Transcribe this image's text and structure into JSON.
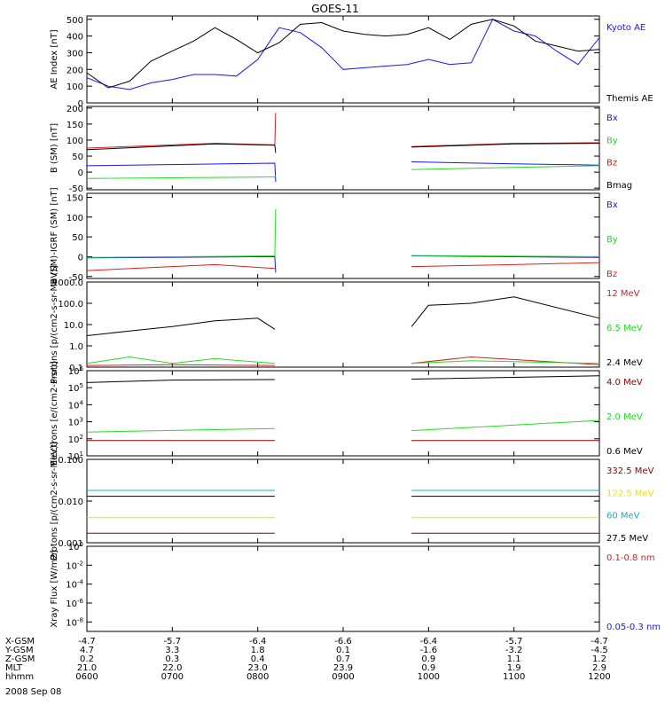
{
  "title": "GOES-11",
  "date": "2008 Sep 08",
  "colors": {
    "black": "#000000",
    "blue": "#1515ff",
    "green": "#22dd22",
    "red": "#d42020",
    "darkred": "#8b0000",
    "yellow": "#f0e000",
    "cyan": "#1aa7d8"
  },
  "ephemeris": {
    "row_labels": [
      "X-GSM",
      "Y-GSM",
      "Z-GSM",
      "MLT",
      "hhmm"
    ],
    "columns": [
      {
        "hhmm": "0600",
        "values": [
          "-4.7",
          "4.7",
          "0.2",
          "21.0",
          "0600"
        ]
      },
      {
        "hhmm": "0700",
        "values": [
          "-5.7",
          "3.3",
          "0.3",
          "22.0",
          "0700"
        ]
      },
      {
        "hhmm": "0800",
        "values": [
          "-6.4",
          "1.8",
          "0.4",
          "23.0",
          "0800"
        ]
      },
      {
        "hhmm": "0900",
        "values": [
          "-6.6",
          "0.1",
          "0.7",
          "23.9",
          "0900"
        ]
      },
      {
        "hhmm": "1000",
        "values": [
          "-6.4",
          "-1.6",
          "0.9",
          "0.9",
          "1000"
        ]
      },
      {
        "hhmm": "1100",
        "values": [
          "-5.7",
          "-3.2",
          "1.1",
          "1.9",
          "1100"
        ]
      },
      {
        "hhmm": "1200",
        "values": [
          "-4.7",
          "-4.5",
          "1.2",
          "2.9",
          "1200"
        ]
      }
    ]
  },
  "chart_data": [
    {
      "type": "line",
      "ylabel": "AE Index [nT]",
      "ylim": [
        0,
        520
      ],
      "yticks": [
        {
          "v": 0,
          "label": "0"
        },
        {
          "v": 100,
          "label": "100"
        },
        {
          "v": 200,
          "label": "200"
        },
        {
          "v": 300,
          "label": "300"
        },
        {
          "v": 400,
          "label": "400"
        },
        {
          "v": 500,
          "label": "500"
        }
      ],
      "series": [
        {
          "name": "Kyoto AE",
          "color": "blue",
          "x": [
            0,
            0.25,
            0.5,
            0.75,
            1,
            1.25,
            1.5,
            1.75,
            2,
            2.25,
            2.5,
            2.75,
            3,
            3.25,
            3.5,
            3.75,
            4,
            4.25,
            4.5,
            4.75,
            5,
            5.25,
            5.5,
            5.75,
            6
          ],
          "y": [
            150,
            100,
            80,
            120,
            140,
            170,
            170,
            160,
            260,
            450,
            420,
            330,
            200,
            210,
            220,
            230,
            260,
            230,
            240,
            500,
            430,
            400,
            310,
            230,
            390
          ]
        },
        {
          "name": "Themis AE",
          "color": "black",
          "x": [
            0,
            0.25,
            0.5,
            0.75,
            1,
            1.25,
            1.5,
            1.75,
            2,
            2.25,
            2.5,
            2.75,
            3,
            3.25,
            3.5,
            3.75,
            4,
            4.25,
            4.5,
            4.75,
            5,
            5.25,
            5.5,
            5.75,
            6
          ],
          "y": [
            180,
            90,
            130,
            250,
            310,
            370,
            450,
            380,
            300,
            360,
            470,
            480,
            430,
            410,
            400,
            410,
            450,
            380,
            470,
            500,
            460,
            370,
            340,
            310,
            320
          ]
        }
      ]
    },
    {
      "type": "line",
      "ylabel": "B (SM) [nT]",
      "ylim": [
        -55,
        205
      ],
      "yticks": [
        {
          "v": -50,
          "label": "-50"
        },
        {
          "v": 0,
          "label": "0"
        },
        {
          "v": 50,
          "label": "50"
        },
        {
          "v": 100,
          "label": "100"
        },
        {
          "v": 150,
          "label": "150"
        },
        {
          "v": 200,
          "label": "200"
        }
      ],
      "series": [
        {
          "name": "Bx",
          "color": "blue",
          "x": [
            0,
            2.2,
            2.21,
            2.22,
            3.8,
            5,
            6
          ],
          "y": [
            20,
            28,
            -30,
            null,
            32,
            26,
            22
          ]
        },
        {
          "name": "By",
          "color": "green",
          "x": [
            0,
            2.2,
            2.21,
            2.22,
            3.8,
            5,
            6
          ],
          "y": [
            -20,
            -15,
            -10,
            null,
            8,
            15,
            20
          ]
        },
        {
          "name": "Bz",
          "color": "red",
          "x": [
            0,
            1.5,
            2.2,
            2.21,
            2.22,
            3.8,
            5,
            6
          ],
          "y": [
            75,
            90,
            85,
            185,
            null,
            80,
            90,
            92
          ]
        },
        {
          "name": "Bmag",
          "color": "black",
          "x": [
            0,
            1.5,
            2.2,
            2.21,
            2.22,
            3.8,
            5,
            6
          ],
          "y": [
            70,
            88,
            84,
            60,
            null,
            78,
            88,
            90
          ]
        }
      ]
    },
    {
      "type": "line",
      "ylabel": "B (SM)-IGRF (SM) [nT]",
      "ylim": [
        -55,
        160
      ],
      "yticks": [
        {
          "v": -50,
          "label": "-50"
        },
        {
          "v": 0,
          "label": "0"
        },
        {
          "v": 50,
          "label": "50"
        },
        {
          "v": 100,
          "label": "100"
        },
        {
          "v": 150,
          "label": "150"
        }
      ],
      "series": [
        {
          "name": "Bx",
          "color": "blue",
          "x": [
            0,
            2.2,
            2.21,
            2.22,
            3.8,
            6
          ],
          "y": [
            -3,
            0,
            -40,
            null,
            2,
            -2
          ]
        },
        {
          "name": "By",
          "color": "green",
          "x": [
            0,
            2.2,
            2.21,
            2.22,
            3.8,
            6
          ],
          "y": [
            -2,
            2,
            120,
            null,
            3,
            0
          ]
        },
        {
          "name": "Bz",
          "color": "red",
          "x": [
            0,
            1.5,
            2.2,
            2.21,
            3.8,
            5,
            6
          ],
          "y": [
            -35,
            -20,
            -30,
            null,
            -25,
            -20,
            -15
          ]
        }
      ]
    },
    {
      "type": "line",
      "log": true,
      "ylabel": "Protons [p/(cm2-s-sr-MeV)]",
      "ylim": [
        0.1,
        1000
      ],
      "yticks": [
        {
          "v": 0.1,
          "label": "0.1"
        },
        {
          "v": 1,
          "label": "1.0"
        },
        {
          "v": 10,
          "label": "10.0"
        },
        {
          "v": 100,
          "label": "100.0"
        },
        {
          "v": 1000,
          "label": "1000.0"
        }
      ],
      "series": [
        {
          "name": "12 MeV",
          "color": "red",
          "x": [
            0,
            1,
            2.2,
            2.21,
            3.8,
            4.5,
            6
          ],
          "y": [
            0.12,
            0.13,
            0.12,
            null,
            0.15,
            0.3,
            0.13
          ]
        },
        {
          "name": "6.5 MeV",
          "color": "green",
          "x": [
            0,
            0.5,
            1,
            1.5,
            2.2,
            2.21,
            3.8,
            4.5,
            6
          ],
          "y": [
            0.15,
            0.3,
            0.15,
            0.25,
            0.15,
            null,
            0.15,
            0.2,
            0.15
          ]
        },
        {
          "name": "2.4 MeV",
          "color": "black",
          "x": [
            0,
            0.5,
            1,
            1.5,
            2,
            2.2,
            2.21,
            3.8,
            4,
            4.5,
            5,
            6
          ],
          "y": [
            3,
            5,
            8,
            15,
            20,
            6,
            null,
            8,
            80,
            100,
            200,
            20
          ]
        }
      ]
    },
    {
      "type": "line",
      "log": true,
      "ylabel": "Electrons [e/(cm2-s-sr)]",
      "ylim": [
        10,
        1000000
      ],
      "yticks": [
        {
          "v": 10,
          "label": "10^1"
        },
        {
          "v": 100,
          "label": "10^2"
        },
        {
          "v": 1000,
          "label": "10^3"
        },
        {
          "v": 10000,
          "label": "10^4"
        },
        {
          "v": 100000,
          "label": "10^5"
        },
        {
          "v": 1000000,
          "label": "10^6"
        }
      ],
      "series": [
        {
          "name": "4.0 MeV",
          "color": "darkred",
          "x": [
            0,
            2.2,
            2.21,
            3.8,
            6
          ],
          "y": [
            80,
            80,
            null,
            80,
            80
          ]
        },
        {
          "name": "2.0 MeV",
          "color": "green",
          "x": [
            0,
            2.2,
            2.21,
            3.8,
            6
          ],
          "y": [
            250,
            400,
            null,
            300,
            1200
          ]
        },
        {
          "name": "0.6 MeV",
          "color": "black",
          "x": [
            0,
            1,
            2.2,
            2.21,
            3.8,
            6
          ],
          "y": [
            200000,
            280000,
            300000,
            null,
            320000,
            500000
          ]
        }
      ]
    },
    {
      "type": "line",
      "log": true,
      "ylabel": "Protons [p/(cm2-s-sr-MeV)]",
      "ylim": [
        0.001,
        0.1
      ],
      "yticks": [
        {
          "v": 0.001,
          "label": "0.001"
        },
        {
          "v": 0.01,
          "label": "0.010"
        },
        {
          "v": 0.1,
          "label": "0.100"
        }
      ],
      "series": [
        {
          "name": "332.5 MeV",
          "color": "darkred",
          "x": [
            0,
            2.2,
            2.21,
            3.8,
            6
          ],
          "y": [
            0.0017,
            0.0017,
            null,
            0.0017,
            0.0017
          ]
        },
        {
          "name": "122.5 MeV",
          "color": "yellow",
          "x": [
            0,
            2.2,
            2.21,
            3.8,
            6
          ],
          "y": [
            0.004,
            0.004,
            null,
            0.004,
            0.004
          ]
        },
        {
          "name": "60 MeV",
          "color": "cyan",
          "x": [
            0,
            2.2,
            2.21,
            3.8,
            6
          ],
          "y": [
            0.018,
            0.018,
            null,
            0.018,
            0.018
          ]
        },
        {
          "name": "27.5 MeV",
          "color": "black",
          "x": [
            0,
            2.2,
            2.21,
            3.8,
            6
          ],
          "y": [
            0.013,
            0.013,
            null,
            0.013,
            0.013
          ]
        }
      ]
    },
    {
      "type": "line",
      "log": true,
      "ylabel": "Xray Flux [W/m2]",
      "ylim": [
        1e-09,
        1
      ],
      "yticks": [
        {
          "v": 1e-08,
          "label": "10^-8"
        },
        {
          "v": 1e-06,
          "label": "10^-6"
        },
        {
          "v": 0.0001,
          "label": "10^-4"
        },
        {
          "v": 0.01,
          "label": "10^-2"
        },
        {
          "v": 1,
          "label": "10^0"
        }
      ],
      "series": [
        {
          "name": "0.1-0.8 nm",
          "color": "red",
          "x": [],
          "y": []
        },
        {
          "name": "0.05-0.3 nm",
          "color": "blue",
          "x": [],
          "y": []
        }
      ]
    }
  ]
}
